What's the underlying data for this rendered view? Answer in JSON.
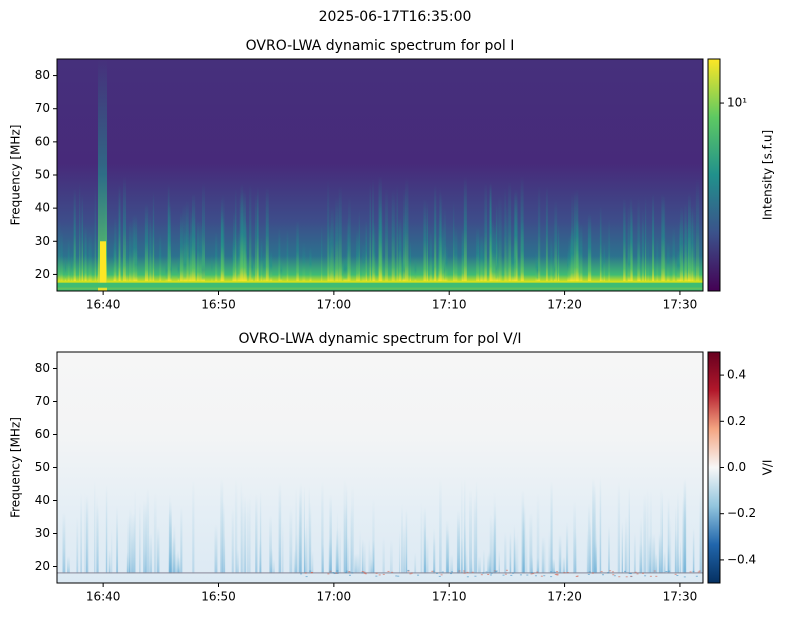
{
  "title": "2025-06-17T16:35:00",
  "chart_data": [
    {
      "type": "heatmap",
      "title": "OVRO-LWA dynamic spectrum for pol I",
      "ylabel": "Frequency [MHz]",
      "xlim": [
        "16:36",
        "17:32"
      ],
      "xticks": [
        "16:40",
        "16:50",
        "17:00",
        "17:10",
        "17:20",
        "17:30"
      ],
      "ylim": [
        15,
        85
      ],
      "yticks": [
        20,
        30,
        40,
        50,
        60,
        70,
        80
      ],
      "colorbar": {
        "label": "Intensity [s.f.u]",
        "scale": "log",
        "clim": [
          1.5,
          15.6
        ],
        "ticks": [
          {
            "value": 10,
            "label": "10¹"
          }
        ],
        "colormap": "viridis"
      }
    },
    {
      "type": "heatmap",
      "title": "OVRO-LWA dynamic spectrum for pol V/I",
      "ylabel": "Frequency [MHz]",
      "xlim": [
        "16:36",
        "17:32"
      ],
      "xticks": [
        "16:40",
        "16:50",
        "17:00",
        "17:10",
        "17:20",
        "17:30"
      ],
      "ylim": [
        15,
        85
      ],
      "yticks": [
        20,
        30,
        40,
        50,
        60,
        70,
        80
      ],
      "colorbar": {
        "label": "V/I",
        "scale": "linear",
        "clim": [
          -0.5,
          0.5
        ],
        "ticks": [
          {
            "value": -0.4,
            "label": "−0.4"
          },
          {
            "value": -0.2,
            "label": "−0.2"
          },
          {
            "value": 0,
            "label": "0.0"
          },
          0.2,
          0.4
        ],
        "colormap": "RdBu_r"
      }
    }
  ]
}
